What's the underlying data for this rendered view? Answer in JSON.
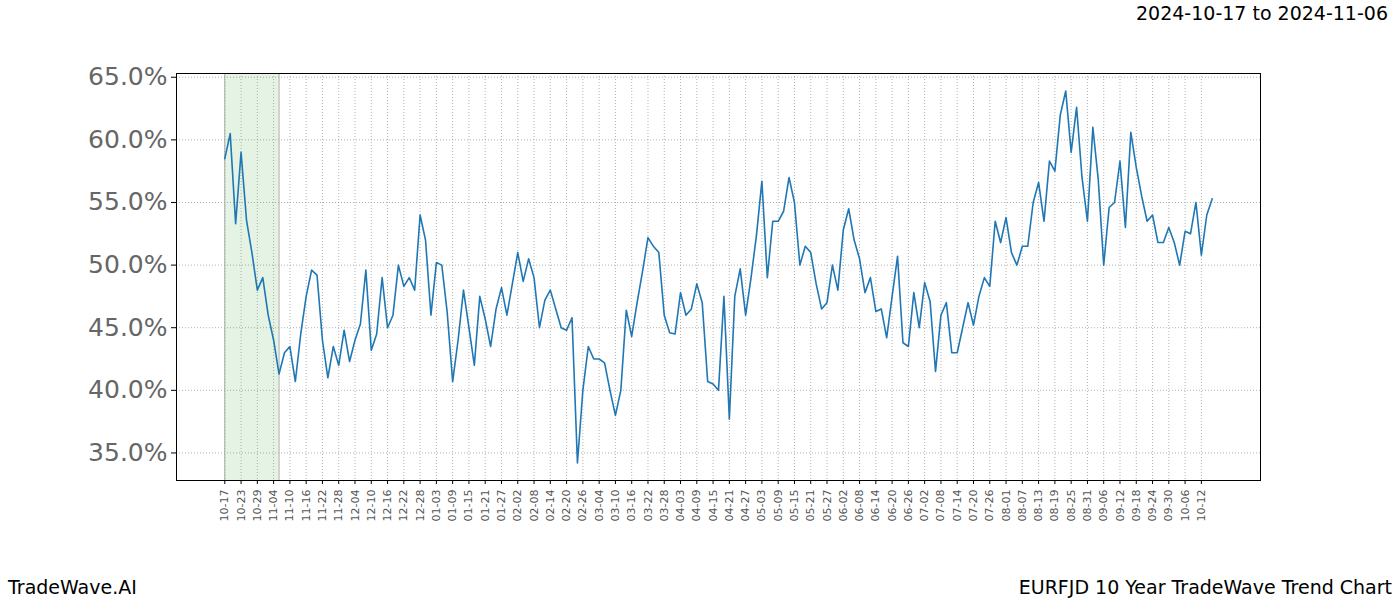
{
  "chart_data": {
    "type": "line",
    "title": "2024-10-17 to 2024-11-06",
    "source": "TradeWave.AI",
    "caption": "EURFJD 10 Year TradeWave Trend Chart",
    "color": "#1f77b4",
    "grid": true,
    "highlight": [
      0,
      10
    ],
    "ylim": [
      32.8,
      65.3
    ],
    "yticks": [
      {
        "value": 35,
        "label": "35.0%"
      },
      {
        "value": 40,
        "label": "40.0%"
      },
      {
        "value": 45,
        "label": "45.0%"
      },
      {
        "value": 50,
        "label": "50.0%"
      },
      {
        "value": 55,
        "label": "55.0%"
      },
      {
        "value": 60,
        "label": "60.0%"
      },
      {
        "value": 65,
        "label": "65.0%"
      }
    ],
    "categories": [
      "10-17",
      null,
      null,
      "10-23",
      null,
      null,
      "10-29",
      null,
      null,
      "11-04",
      null,
      null,
      "11-10",
      null,
      null,
      "11-16",
      null,
      null,
      "11-22",
      null,
      null,
      "11-28",
      null,
      null,
      "12-04",
      null,
      null,
      "12-10",
      null,
      null,
      "12-16",
      null,
      null,
      "12-22",
      null,
      null,
      "12-28",
      null,
      null,
      "01-03",
      null,
      null,
      "01-09",
      null,
      null,
      "01-15",
      null,
      null,
      "01-21",
      null,
      null,
      "01-27",
      null,
      null,
      "02-02",
      null,
      null,
      "02-08",
      null,
      null,
      "02-14",
      null,
      null,
      "02-20",
      null,
      null,
      "02-26",
      null,
      null,
      "03-04",
      null,
      null,
      "03-10",
      null,
      null,
      "03-16",
      null,
      null,
      "03-22",
      null,
      null,
      "03-28",
      null,
      null,
      "04-03",
      null,
      null,
      "04-09",
      null,
      null,
      "04-15",
      null,
      null,
      "04-21",
      null,
      null,
      "04-27",
      null,
      null,
      "05-03",
      null,
      null,
      "05-09",
      null,
      null,
      "05-15",
      null,
      null,
      "05-21",
      null,
      null,
      "05-27",
      null,
      null,
      "06-02",
      null,
      null,
      "06-08",
      null,
      null,
      "06-14",
      null,
      null,
      "06-20",
      null,
      null,
      "06-26",
      null,
      null,
      "07-02",
      null,
      null,
      "07-08",
      null,
      null,
      "07-14",
      null,
      null,
      "07-20",
      null,
      null,
      "07-26",
      null,
      null,
      "08-01",
      null,
      null,
      "08-07",
      null,
      null,
      "08-13",
      null,
      null,
      "08-19",
      null,
      null,
      "08-25",
      null,
      null,
      "08-31",
      null,
      null,
      "09-06",
      null,
      null,
      "09-12",
      null,
      null,
      "09-18",
      null,
      null,
      "09-24",
      null,
      null,
      "09-30",
      null,
      null,
      "10-06",
      null,
      null,
      "10-12",
      null,
      null
    ],
    "values": [
      58.5,
      60.5,
      53.3,
      59.0,
      53.6,
      51.0,
      48.0,
      49.0,
      46.0,
      44.0,
      41.3,
      43.0,
      43.5,
      40.7,
      44.5,
      47.5,
      49.6,
      49.2,
      44.0,
      41.0,
      43.5,
      42.0,
      44.8,
      42.3,
      44.0,
      45.3,
      49.6,
      43.2,
      44.5,
      49.0,
      45.0,
      46.0,
      50.0,
      48.3,
      49.0,
      48.0,
      54.0,
      52.0,
      46.0,
      50.2,
      50.0,
      46.2,
      40.7,
      44.0,
      48.0,
      45.0,
      42.0,
      47.5,
      45.7,
      43.5,
      46.5,
      48.2,
      46.0,
      48.5,
      51.0,
      48.7,
      50.5,
      49.0,
      45.0,
      47.2,
      48.0,
      46.5,
      45.0,
      44.8,
      45.8,
      34.2,
      40.0,
      43.5,
      42.5,
      42.5,
      42.2,
      40.0,
      38.0,
      40.0,
      46.4,
      44.3,
      47.0,
      49.5,
      52.2,
      51.5,
      51.0,
      46.0,
      44.6,
      44.5,
      47.8,
      46.0,
      46.5,
      48.5,
      47.0,
      40.7,
      40.5,
      40.0,
      47.5,
      37.7,
      47.5,
      49.7,
      46.0,
      49.0,
      52.4,
      56.7,
      49.0,
      53.5,
      53.5,
      54.3,
      57.0,
      55.0,
      50.0,
      51.5,
      51.0,
      48.5,
      46.5,
      47.0,
      50.0,
      48.0,
      52.8,
      54.5,
      52.0,
      50.5,
      47.8,
      49.0,
      46.3,
      46.5,
      44.2,
      47.5,
      50.7,
      43.8,
      43.5,
      47.8,
      45.0,
      48.6,
      47.1,
      41.5,
      46.0,
      47.0,
      43.0,
      43.0,
      45.0,
      47.0,
      45.2,
      47.5,
      49.0,
      48.3,
      53.5,
      51.8,
      53.8,
      51.0,
      50.0,
      51.5,
      51.5,
      55.0,
      56.6,
      53.5,
      58.3,
      57.5,
      62.0,
      63.9,
      59.0,
      62.6,
      57.0,
      53.5,
      61.0,
      56.8,
      50.0,
      54.6,
      55.0,
      58.3,
      53.0,
      60.6,
      57.8,
      55.5,
      53.5,
      54.0,
      51.8,
      51.8,
      53.0,
      51.8,
      50.0,
      52.7,
      52.5,
      55.0,
      50.8,
      54.0,
      55.3
    ]
  }
}
